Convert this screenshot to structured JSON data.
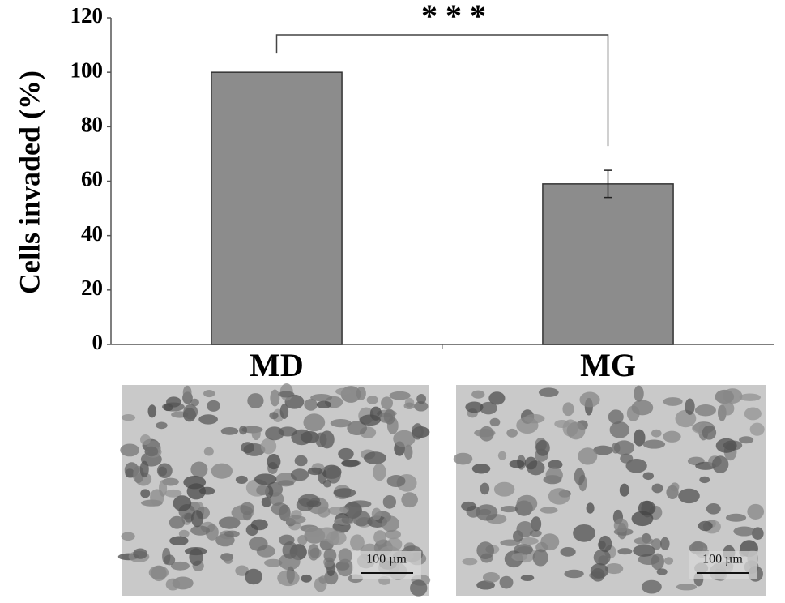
{
  "chart_data": {
    "type": "bar",
    "y_label": "Cells invaded (%)",
    "categories": [
      "MD",
      "MG"
    ],
    "values": [
      100,
      59
    ],
    "errors": [
      null,
      5
    ],
    "color": "#8c8c8c",
    "ylim": [
      0,
      120
    ],
    "yticks": [
      0,
      20,
      40,
      60,
      80,
      100,
      120
    ],
    "annotation": "* * *"
  },
  "images": [
    {
      "scale_bar": "100 µm"
    },
    {
      "scale_bar": "100 µm"
    }
  ]
}
